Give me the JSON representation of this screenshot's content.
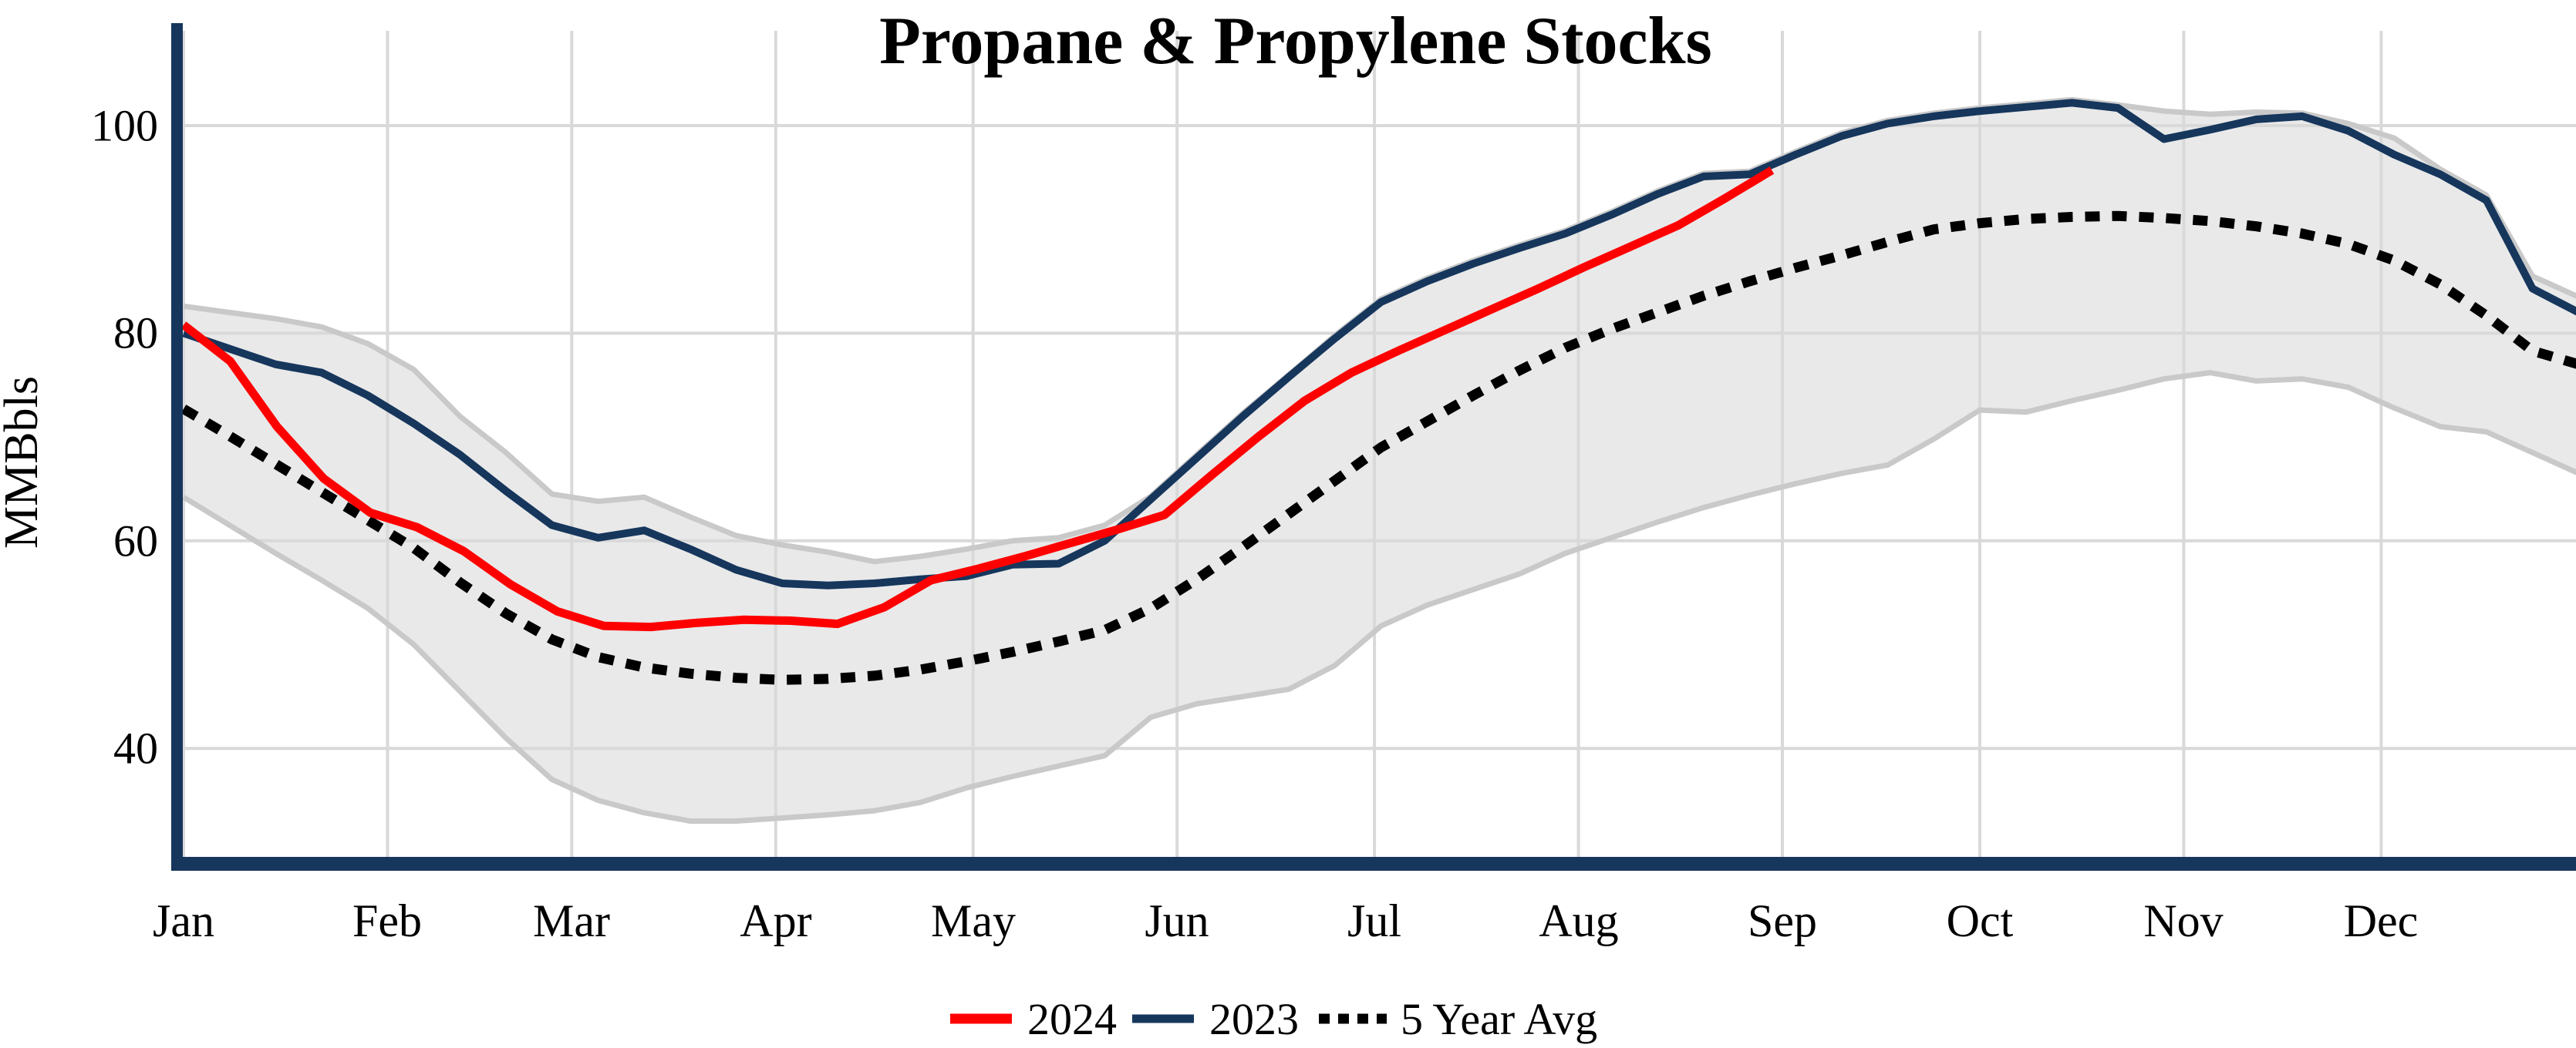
{
  "title": "Propane & Propylene Stocks",
  "y_axis": {
    "label": "MMBbls",
    "ticks": [
      "100",
      "80",
      "60",
      "40"
    ]
  },
  "x_axis": {
    "months": [
      "Jan",
      "Feb",
      "Mar",
      "Apr",
      "May",
      "Jun",
      "Jul",
      "Aug",
      "Sep",
      "Oct",
      "Nov",
      "Dec"
    ]
  },
  "legend": {
    "items": [
      {
        "label": "2024",
        "color": "#FF0000",
        "style": "solid"
      },
      {
        "label": "2023",
        "color": "#16365C",
        "style": "solid"
      },
      {
        "label": "5 Year Avg",
        "color": "#000000",
        "style": "dotted"
      }
    ]
  },
  "colors": {
    "axis": "#16365C",
    "grid": "#D9D9D9",
    "band_fill": "#E9E9E9",
    "band_edge": "#C9C9C9",
    "series_2024": "#FF0000",
    "series_2023": "#16365C",
    "series_5yr": "#000000",
    "background": "#FFFFFF"
  },
  "chart_data": {
    "type": "line",
    "title": "Propane & Propylene Stocks",
    "ylabel": "MMBbls",
    "xlabel": "",
    "ylim": [
      29.5,
      109.5
    ],
    "y_ticks": [
      100,
      80,
      60,
      40
    ],
    "grid": true,
    "legend_position": "bottom",
    "x_unit": "day of year (weekly observations)",
    "month_start_days": [
      1,
      32,
      60,
      91,
      121,
      152,
      182,
      213,
      244,
      274,
      305,
      335
    ],
    "band": {
      "name": "5-year range (shaded)",
      "start_day": 1,
      "step_days": 7,
      "upper": [
        82.6,
        82.0,
        81.4,
        80.6,
        79.0,
        76.5,
        72.0,
        68.5,
        64.5,
        63.8,
        64.2,
        62.3,
        60.5,
        59.6,
        58.9,
        58.0,
        58.5,
        59.2,
        60.0,
        60.3,
        61.5,
        64.3,
        68.3,
        72.3,
        76.0,
        79.8,
        83.3,
        85.3,
        87.0,
        88.5,
        89.9,
        91.7,
        93.7,
        95.4,
        95.6,
        97.5,
        99.3,
        100.5,
        101.2,
        101.7,
        102.1,
        102.5,
        102.0,
        101.4,
        101.1,
        101.3,
        101.2,
        100.2,
        98.8,
        95.8,
        93.3,
        85.5,
        83.5
      ],
      "lower": [
        64.2,
        61.5,
        58.8,
        56.2,
        53.5,
        50.0,
        45.5,
        41.0,
        37.0,
        35.0,
        33.8,
        33.0,
        33.0,
        33.3,
        33.6,
        34.0,
        34.8,
        36.2,
        37.3,
        38.3,
        39.3,
        43.0,
        44.3,
        45.0,
        45.7,
        48.0,
        51.8,
        53.8,
        55.3,
        56.8,
        58.8,
        60.3,
        61.8,
        63.2,
        64.4,
        65.5,
        66.5,
        67.3,
        69.8,
        72.6,
        72.4,
        73.5,
        74.5,
        75.6,
        76.2,
        75.4,
        75.6,
        74.8,
        72.8,
        71.0,
        70.5,
        68.5,
        66.5
      ]
    },
    "series": [
      {
        "name": "2024",
        "color": "#FF0000",
        "width": 11,
        "dash": null,
        "start_day": 1,
        "step_days": 7.1,
        "values": [
          80.8,
          77.3,
          71.0,
          66.0,
          62.7,
          61.3,
          59.0,
          55.8,
          53.2,
          51.8,
          51.7,
          52.1,
          52.4,
          52.3,
          52.0,
          53.6,
          56.2,
          57.3,
          58.5,
          59.8,
          61.1,
          62.5,
          66.3,
          70.0,
          73.5,
          76.2,
          78.3,
          80.3,
          82.3,
          84.3,
          86.4,
          88.4,
          90.4,
          93.0,
          95.7
        ]
      },
      {
        "name": "2023",
        "color": "#16365C",
        "width": 10,
        "dash": null,
        "start_day": 1,
        "step_days": 7,
        "values": [
          80.0,
          78.5,
          77.0,
          76.2,
          74.0,
          71.3,
          68.3,
          64.8,
          61.5,
          60.3,
          61.0,
          59.2,
          57.2,
          55.9,
          55.7,
          55.9,
          56.3,
          56.6,
          57.7,
          57.8,
          60.0,
          64.0,
          68.0,
          72.0,
          75.8,
          79.5,
          83.0,
          85.0,
          86.7,
          88.2,
          89.6,
          91.4,
          93.4,
          95.1,
          95.3,
          97.2,
          99.0,
          100.2,
          100.9,
          101.4,
          101.8,
          102.2,
          101.7,
          98.7,
          99.6,
          100.6,
          100.9,
          99.5,
          97.2,
          95.3,
          92.8,
          84.3,
          82.0
        ]
      },
      {
        "name": "5 Year Avg",
        "color": "#000000",
        "width": 13,
        "dash": [
          19,
          16
        ],
        "start_day": 1,
        "step_days": 7,
        "values": [
          72.7,
          70.1,
          67.4,
          64.7,
          62.0,
          59.3,
          56.0,
          53.0,
          50.5,
          48.8,
          47.8,
          47.2,
          46.8,
          46.6,
          46.7,
          47.0,
          47.6,
          48.4,
          49.3,
          50.3,
          51.4,
          53.5,
          56.3,
          59.4,
          62.6,
          65.8,
          69.0,
          71.5,
          74.0,
          76.4,
          78.6,
          80.4,
          82.0,
          83.6,
          85.0,
          86.3,
          87.5,
          88.8,
          90.0,
          90.6,
          91.0,
          91.2,
          91.3,
          91.1,
          90.8,
          90.3,
          89.6,
          88.6,
          87.0,
          84.7,
          81.7,
          78.3,
          77.0
        ]
      }
    ]
  }
}
